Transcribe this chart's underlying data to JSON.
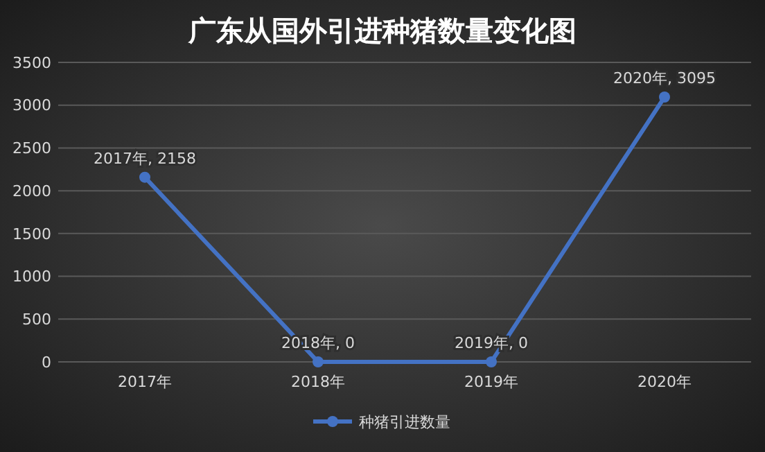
{
  "chart_data": {
    "type": "line",
    "title": "广东从国外引进种猪数量变化图",
    "categories": [
      "2017年",
      "2018年",
      "2019年",
      "2020年"
    ],
    "series": [
      {
        "name": "种猪引进数量",
        "color": "#4472c4",
        "values": [
          2158,
          0,
          0,
          3095
        ],
        "value_labels": [
          "2017年, 2158",
          "2018年, 0",
          "2019年, 0",
          "2020年, 3095"
        ]
      }
    ],
    "ylim": [
      0,
      3500
    ],
    "yticks": [
      0,
      500,
      1000,
      1500,
      2000,
      2500,
      3000,
      3500
    ],
    "grid": "y",
    "legend": "bottom",
    "marker": "circle",
    "line_style": "solid"
  }
}
